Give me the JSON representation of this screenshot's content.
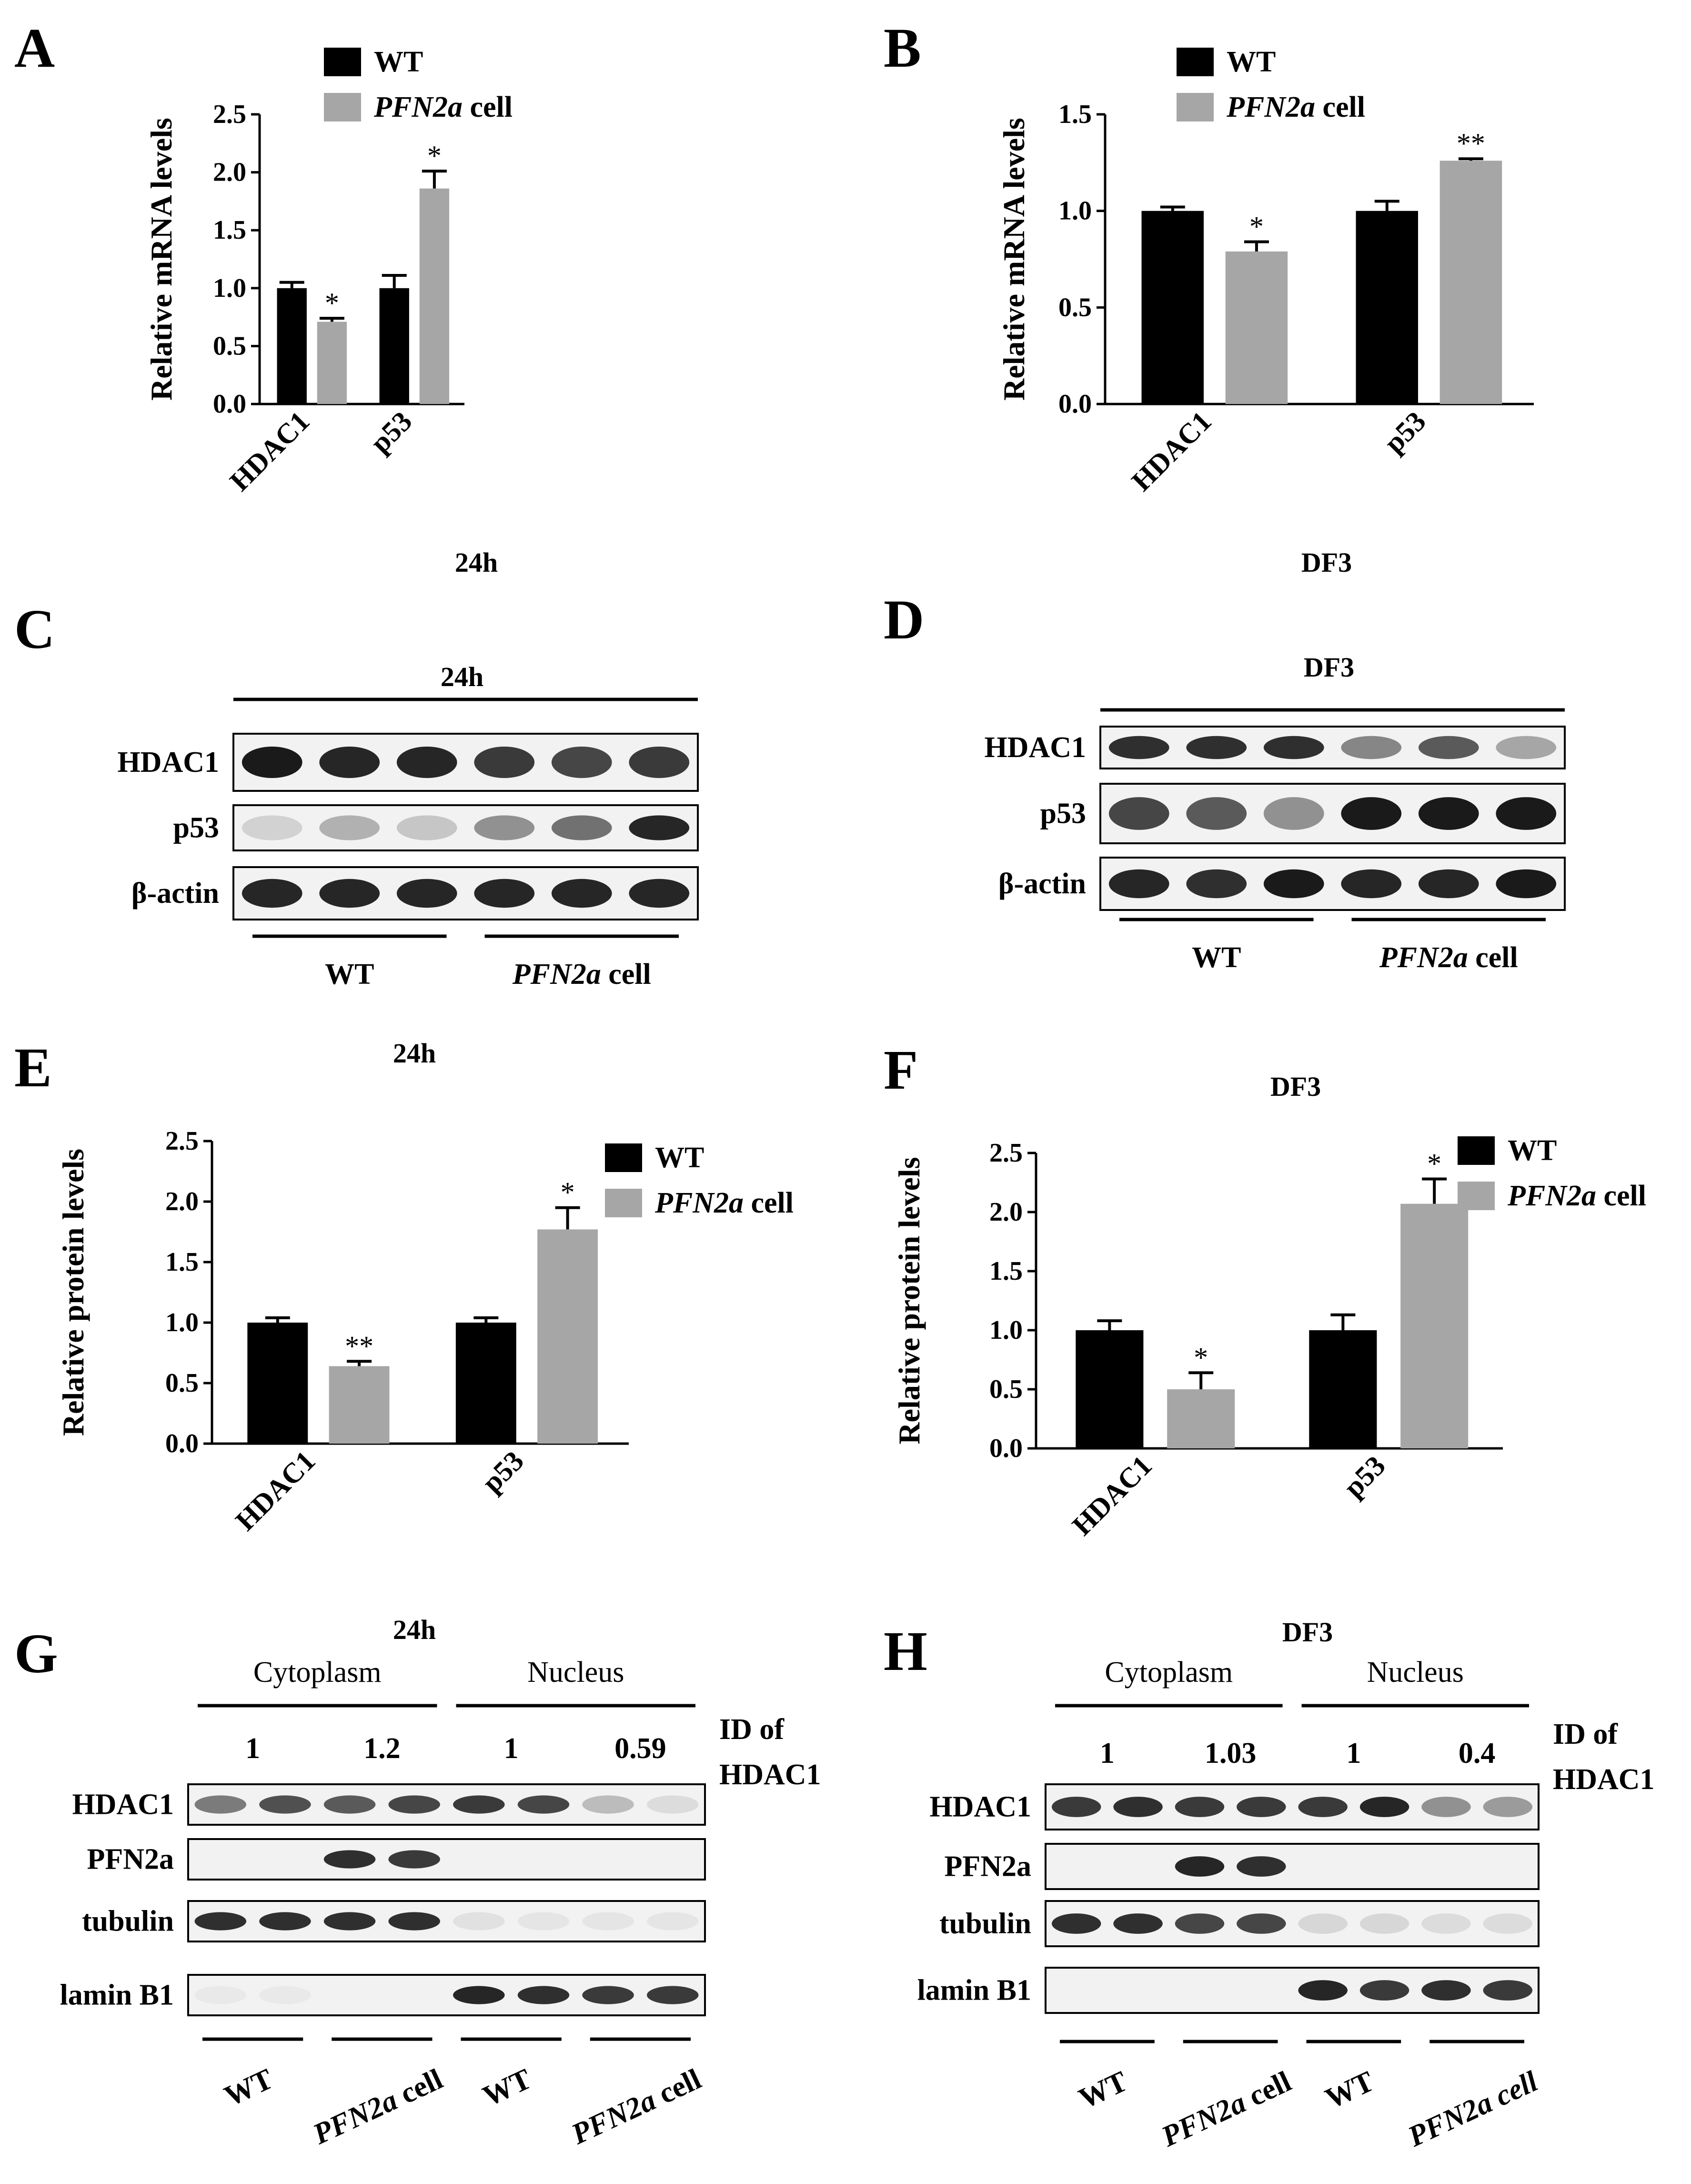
{
  "legend": {
    "wt": "WT",
    "ko_italic": "PFN2a",
    "ko_suffix": " cell"
  },
  "colors": {
    "wt": "#000000",
    "ko": "#a6a6a6",
    "band": "#1a1a1a"
  },
  "chart_data": [
    {
      "panel": "A",
      "type": "bar",
      "title": "24h",
      "ylabel": "Relative mRNA levels",
      "categories": [
        "HDAC1",
        "p53"
      ],
      "ylim": [
        0,
        2.5
      ],
      "ytick_labels": [
        "0.0",
        "0.5",
        "1.0",
        "1.5",
        "2.0",
        "2.5"
      ],
      "series": [
        {
          "name": "WT",
          "values": [
            1.0,
            1.0
          ],
          "errors": [
            0.05,
            0.11
          ],
          "stars": [
            "",
            ""
          ]
        },
        {
          "name": "PFN2a cell",
          "values": [
            0.71,
            1.86
          ],
          "errors": [
            0.03,
            0.15
          ],
          "stars": [
            "*",
            "*"
          ]
        }
      ]
    },
    {
      "panel": "B",
      "type": "bar",
      "title": "DF3",
      "ylabel": "Relative mRNA levels",
      "categories": [
        "HDAC1",
        "p53"
      ],
      "ylim": [
        0,
        1.5
      ],
      "ytick_labels": [
        "0.0",
        "0.5",
        "1.0",
        "1.5"
      ],
      "series": [
        {
          "name": "WT",
          "values": [
            1.0,
            1.0
          ],
          "errors": [
            0.02,
            0.05
          ],
          "stars": [
            "",
            ""
          ]
        },
        {
          "name": "PFN2a cell",
          "values": [
            0.79,
            1.26
          ],
          "errors": [
            0.05,
            0.01
          ],
          "stars": [
            "*",
            "**"
          ]
        }
      ]
    },
    {
      "panel": "E",
      "type": "bar",
      "title": "24h",
      "ylabel": "Relative protein levels",
      "categories": [
        "HDAC1",
        "p53"
      ],
      "ylim": [
        0,
        2.5
      ],
      "ytick_labels": [
        "0.0",
        "0.5",
        "1.0",
        "1.5",
        "2.0",
        "2.5"
      ],
      "series": [
        {
          "name": "WT",
          "values": [
            1.0,
            1.0
          ],
          "errors": [
            0.04,
            0.04
          ],
          "stars": [
            "",
            ""
          ]
        },
        {
          "name": "PFN2a cell",
          "values": [
            0.64,
            1.77
          ],
          "errors": [
            0.04,
            0.18
          ],
          "stars": [
            "**",
            "*"
          ]
        }
      ]
    },
    {
      "panel": "F",
      "type": "bar",
      "title": "DF3",
      "ylabel": "Relative protein levels",
      "categories": [
        "HDAC1",
        "p53"
      ],
      "ylim": [
        0,
        2.5
      ],
      "ytick_labels": [
        "0.0",
        "0.5",
        "1.0",
        "1.5",
        "2.0",
        "2.5"
      ],
      "series": [
        {
          "name": "WT",
          "values": [
            1.0,
            1.0
          ],
          "errors": [
            0.08,
            0.13
          ],
          "stars": [
            "",
            ""
          ]
        },
        {
          "name": "PFN2a cell",
          "values": [
            0.5,
            2.07
          ],
          "errors": [
            0.14,
            0.21
          ],
          "stars": [
            "*",
            "*"
          ]
        }
      ]
    }
  ],
  "blots": {
    "C": {
      "label": "C",
      "title": "24h",
      "rows": [
        "HDAC1",
        "p53",
        "β-actin"
      ],
      "intensity": [
        [
          1,
          0.95,
          0.95,
          0.85,
          0.8,
          0.85
        ],
        [
          0.15,
          0.3,
          0.2,
          0.45,
          0.6,
          0.95
        ],
        [
          0.95,
          0.95,
          0.95,
          0.95,
          0.95,
          0.95
        ]
      ],
      "groups": [
        "WT",
        "PFN2a cell"
      ]
    },
    "D": {
      "label": "D",
      "title": "DF3",
      "rows": [
        "HDAC1",
        "p53",
        "β-actin"
      ],
      "intensity": [
        [
          0.9,
          0.9,
          0.9,
          0.5,
          0.7,
          0.35
        ],
        [
          0.8,
          0.7,
          0.45,
          1,
          1,
          1
        ],
        [
          0.95,
          0.9,
          1,
          0.95,
          0.95,
          1
        ]
      ],
      "groups": [
        "WT",
        "PFN2a cell"
      ]
    },
    "G": {
      "label": "G",
      "title": "24h",
      "fractions": [
        "Cytoplasm",
        "Nucleus"
      ],
      "id_values": [
        "1",
        "1.2",
        "1",
        "0.59"
      ],
      "id_label_1": "ID of",
      "id_label_2": "HDAC1",
      "rows": [
        "HDAC1",
        "PFN2a",
        "tubulin",
        "lamin B1"
      ],
      "intensity": [
        [
          0.55,
          0.75,
          0.7,
          0.8,
          0.85,
          0.8,
          0.25,
          0.1
        ],
        [
          0,
          0,
          0.9,
          0.85,
          0,
          0,
          0,
          0
        ],
        [
          0.9,
          0.9,
          0.9,
          0.9,
          0.08,
          0.06,
          0.06,
          0.06
        ],
        [
          0.04,
          0.04,
          0,
          0,
          0.95,
          0.9,
          0.85,
          0.85
        ]
      ],
      "groups": [
        "WT",
        "PFN2a cell",
        "WT",
        "PFN2a cell"
      ]
    },
    "H": {
      "label": "H",
      "title": "DF3",
      "fractions": [
        "Cytoplasm",
        "Nucleus"
      ],
      "id_values": [
        "1",
        "1.03",
        "1",
        "0.4"
      ],
      "id_label_1": "ID of",
      "id_label_2": "HDAC1",
      "rows": [
        "HDAC1",
        "PFN2a",
        "tubulin",
        "lamin B1"
      ],
      "intensity": [
        [
          0.85,
          0.9,
          0.85,
          0.85,
          0.85,
          0.95,
          0.45,
          0.4
        ],
        [
          0,
          0,
          0.95,
          0.9,
          0,
          0,
          0,
          0
        ],
        [
          0.9,
          0.9,
          0.8,
          0.8,
          0.12,
          0.12,
          0.1,
          0.1
        ],
        [
          0,
          0,
          0,
          0,
          0.95,
          0.85,
          0.9,
          0.85
        ]
      ],
      "groups": [
        "WT",
        "PFN2a cell",
        "WT",
        "PFN2a cell"
      ],
      "group_label_plain": "PFN2a cell"
    }
  }
}
